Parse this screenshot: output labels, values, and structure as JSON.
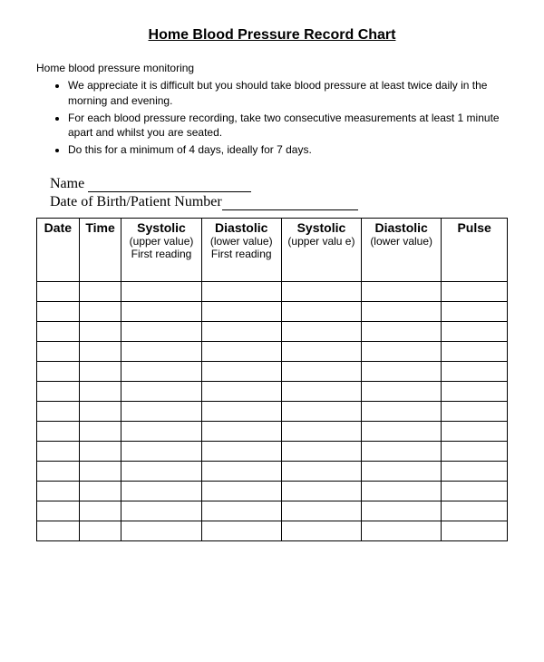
{
  "title": "Home Blood Pressure Record Chart",
  "intro": "Home blood pressure monitoring",
  "bullets": [
    "We appreciate it is difficult but you should take blood pressure at least twice daily in the morning and evening.",
    "For each blood pressure recording, take two consecutive measurements  at least 1 minute apart and whilst you are seated.",
    "Do this for a minimum of 4 days, ideally for 7 days."
  ],
  "fields": {
    "name_label": "Name",
    "dob_label": "Date of Birth/Patient Number"
  },
  "table": {
    "headers": [
      {
        "main": "Date",
        "sub": ""
      },
      {
        "main": "Time",
        "sub": ""
      },
      {
        "main": "Systolic",
        "sub": "(upper value) First reading"
      },
      {
        "main": "Diastolic",
        "sub": "(lower value) First reading"
      },
      {
        "main": "Systolic",
        "sub": "(upper valu e)"
      },
      {
        "main": "Diastolic",
        "sub": "(lower value)"
      },
      {
        "main": "Pulse",
        "sub": ""
      }
    ],
    "row_count": 13
  }
}
